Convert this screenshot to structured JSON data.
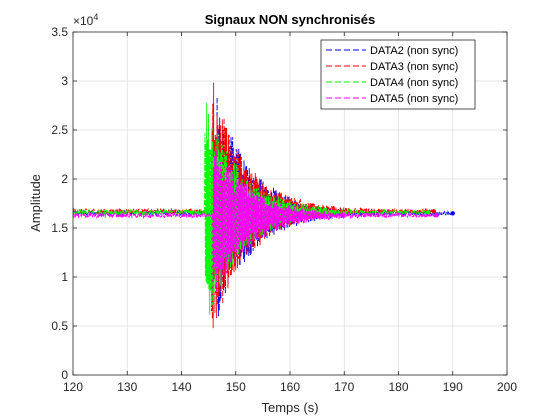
{
  "chart_data": {
    "type": "line",
    "title": "Signaux NON synchronisés",
    "xlabel": "Temps (s)",
    "ylabel": "Amplitude",
    "xlim": [
      120,
      200
    ],
    "ylim": [
      0,
      35000
    ],
    "x_ticks": [
      120,
      130,
      140,
      150,
      160,
      170,
      180,
      190,
      200
    ],
    "y_ticks": [
      0,
      5000,
      10000,
      15000,
      20000,
      25000,
      30000,
      35000
    ],
    "y_tick_labels": [
      "0",
      "0.5",
      "1",
      "1.5",
      "2",
      "2.5",
      "3",
      "3.5"
    ],
    "y_exponent": "×10",
    "y_exponent_power": "4",
    "grid": true,
    "legend_position": "top-right",
    "series": [
      {
        "name": "DATA2 (non sync)",
        "color": "#0000ff",
        "line_style": "dashed",
        "baseline": 16500,
        "start": 120,
        "burst_start": 146.5,
        "peak_max": 29000,
        "peak_min": 5500,
        "end": 190
      },
      {
        "name": "DATA3 (non sync)",
        "color": "#ff0000",
        "line_style": "dashed",
        "baseline": 16700,
        "start": 120,
        "burst_start": 145.5,
        "peak_max": 30700,
        "peak_min": 3500,
        "end": 186.5
      },
      {
        "name": "DATA4 (non sync)",
        "color": "#00ff00",
        "line_style": "dashed",
        "baseline": 16600,
        "start": 120,
        "burst_start": 144.3,
        "peak_max": 28500,
        "peak_min": 4500,
        "end": 185.5
      },
      {
        "name": "DATA5 (non sync)",
        "color": "#ff00ff",
        "line_style": "dashed",
        "baseline": 16300,
        "start": 120,
        "burst_start": 145.8,
        "peak_max": 24500,
        "peak_min": 7000,
        "end": 187
      }
    ]
  }
}
